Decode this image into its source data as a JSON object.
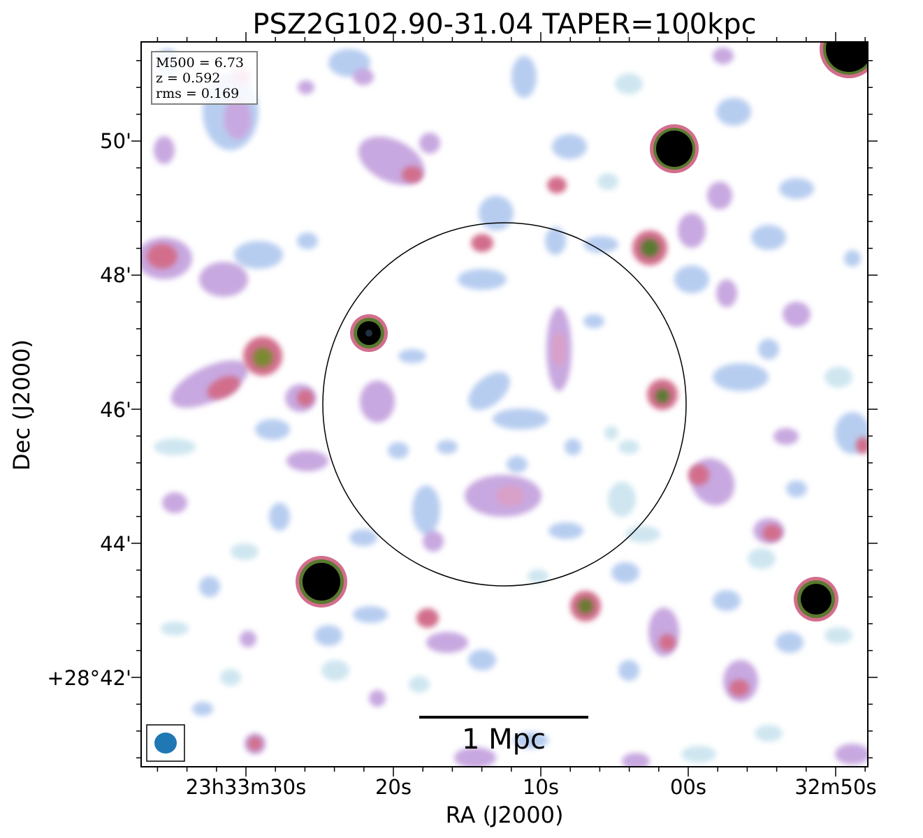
{
  "title": "PSZ2G102.90-31.04 TAPER=100kpc",
  "info_box": {
    "line1": "M500 = 6.73",
    "line2": "z = 0.592",
    "line3": "rms = 0.169"
  },
  "axes": {
    "x_label": "RA (J2000)",
    "y_label": "Dec (J2000)",
    "x_ticks": [
      "23h33m30s",
      "20s",
      "10s",
      "00s",
      "32m50s"
    ],
    "y_ticks": [
      "50'",
      "48'",
      "46'",
      "44'",
      "+28°42'"
    ]
  },
  "scale_bar": {
    "label": "1 Mpc"
  },
  "beam": {
    "color": "#1f77b4"
  },
  "colormap": {
    "faint": "#cfe6f0",
    "low": "#b7cdf0",
    "mid": "#c8a8e0",
    "high": "#d26e8c",
    "peak": "#5a7a30",
    "core": "#000000"
  }
}
